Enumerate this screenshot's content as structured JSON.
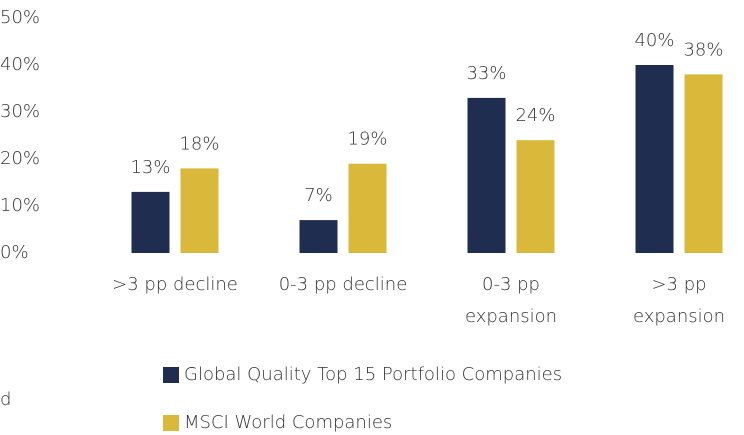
{
  "chart_data": {
    "type": "bar",
    "categories": [
      ">3 pp decline",
      "0-3 pp decline",
      "0-3 pp expansion",
      ">3 pp expansion"
    ],
    "series": [
      {
        "name": "Global Quality Top 15 Portfolio Companies",
        "color": "#1f2d50",
        "values": [
          13,
          7,
          33,
          40
        ],
        "value_labels": [
          "13%",
          "7%",
          "33%",
          "40%"
        ]
      },
      {
        "name": "MSCI World Companies",
        "color": "#d9b83a",
        "values": [
          18,
          19,
          24,
          38
        ],
        "value_labels": [
          "18%",
          "19%",
          "24%",
          "38%"
        ]
      }
    ],
    "ylim": [
      0,
      50
    ],
    "yticks": [
      {
        "value": 0,
        "label": "0%"
      },
      {
        "value": 10,
        "label": "10%"
      },
      {
        "value": 20,
        "label": "20%"
      },
      {
        "value": 30,
        "label": "30%"
      },
      {
        "value": 40,
        "label": "40%"
      },
      {
        "value": 50,
        "label": "50%"
      }
    ],
    "grid": false,
    "legend": "bottom",
    "clipped_text": "d"
  }
}
